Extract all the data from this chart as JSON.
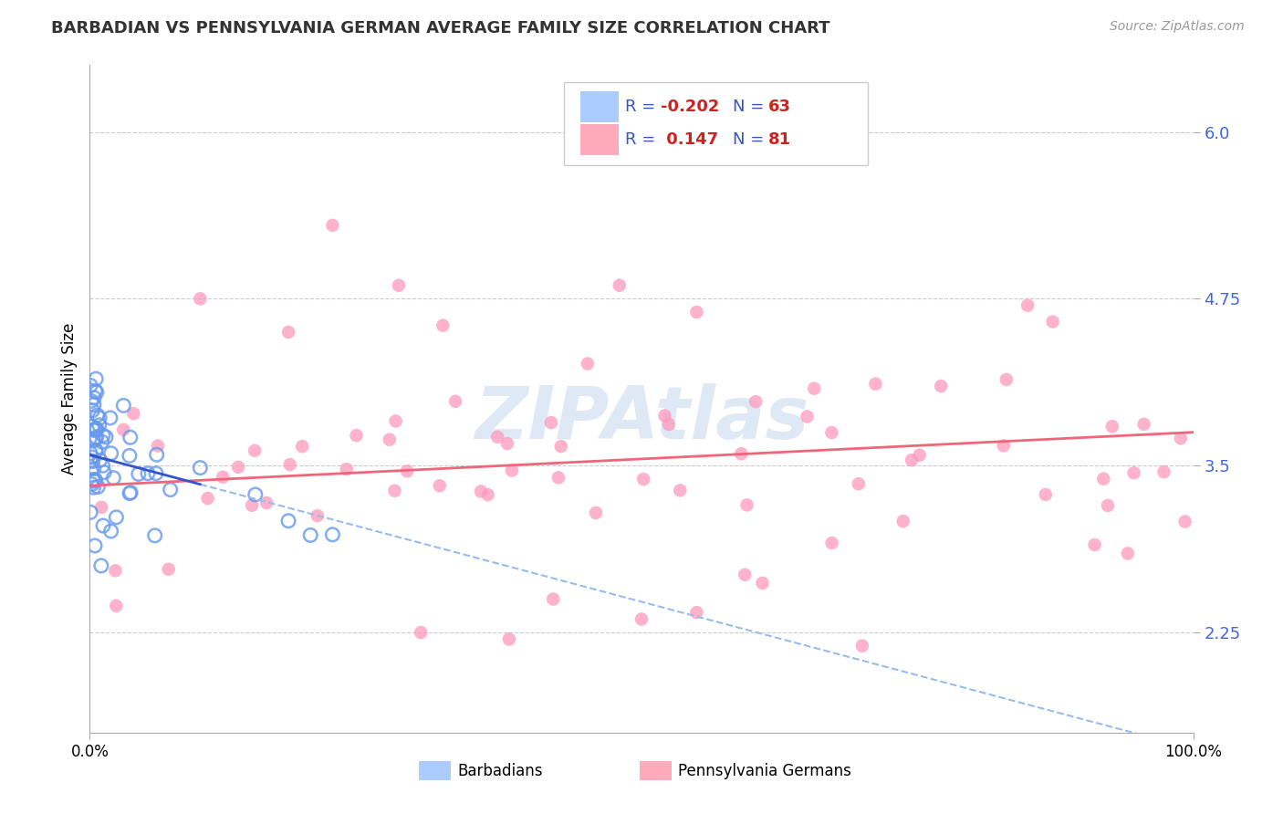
{
  "title": "BARBADIAN VS PENNSYLVANIA GERMAN AVERAGE FAMILY SIZE CORRELATION CHART",
  "source_text": "Source: ZipAtlas.com",
  "ylabel": "Average Family Size",
  "xlim": [
    0,
    100
  ],
  "ylim": [
    1.5,
    6.5
  ],
  "yticks": [
    2.25,
    3.5,
    4.75,
    6.0
  ],
  "xticklabels": [
    "0.0%",
    "100.0%"
  ],
  "r_barbadian": -0.202,
  "n_barbadian": 63,
  "r_pagerman": 0.147,
  "n_pagerman": 81,
  "color_barbadian_edge": "#6699ee",
  "color_pagerman_fill": "#ff99bb",
  "watermark": "ZIPAtlas",
  "watermark_color": "#c5d8f0",
  "title_color": "#333333",
  "source_color": "#999999",
  "tick_color": "#4466dd",
  "legend_r_color": "#cc0000",
  "legend_n_color": "#4466dd",
  "reg_line_barb_color": "#3355cc",
  "reg_line_pager_color": "#ee6677",
  "reg_line_dashed_color": "#99bbee",
  "grid_color": "#cccccc"
}
